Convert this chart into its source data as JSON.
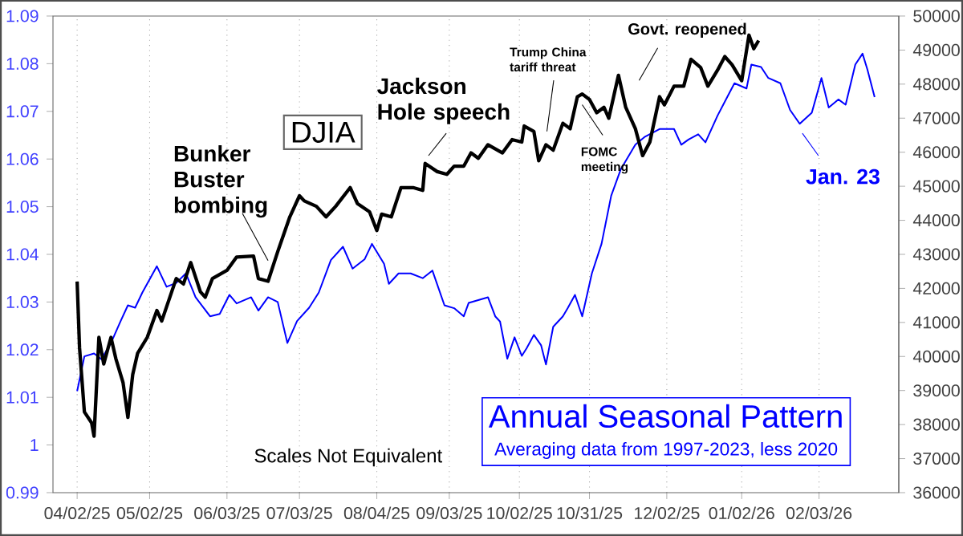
{
  "chart_data": {
    "type": "line",
    "xlim": [
      "2025-03-23",
      "2026-03-08"
    ],
    "xticks": [
      {
        "value": "2025-04-02",
        "label": "04/02/25"
      },
      {
        "value": "2025-05-02",
        "label": "05/02/25"
      },
      {
        "value": "2025-06-03",
        "label": "06/03/25"
      },
      {
        "value": "2025-07-03",
        "label": "07/03/25"
      },
      {
        "value": "2025-08-04",
        "label": "08/04/25"
      },
      {
        "value": "2025-09-03",
        "label": "09/03/25"
      },
      {
        "value": "2025-10-02",
        "label": "10/02/25"
      },
      {
        "value": "2025-10-31",
        "label": "10/31/25"
      },
      {
        "value": "2025-12-02",
        "label": "12/02/25"
      },
      {
        "value": "2026-01-02",
        "label": "01/02/26"
      },
      {
        "value": "2026-02-03",
        "label": "02/03/26"
      }
    ],
    "ylim": [
      0.99,
      1.09
    ],
    "yticks": [
      0.99,
      1,
      1.01,
      1.02,
      1.03,
      1.04,
      1.05,
      1.06,
      1.07,
      1.08,
      1.09
    ],
    "y2lim": [
      36000,
      50000
    ],
    "y2ticks": [
      36000,
      37000,
      38000,
      39000,
      40000,
      41000,
      42000,
      43000,
      44000,
      45000,
      46000,
      47000,
      48000,
      49000,
      50000
    ],
    "grid": "x",
    "series": [
      {
        "name": "DJIA",
        "color": "#000000",
        "axis": "y2",
        "x": [
          "2025-04-02",
          "2025-04-03",
          "2025-04-05",
          "2025-04-08",
          "2025-04-09",
          "2025-04-11",
          "2025-04-13",
          "2025-04-16",
          "2025-04-18",
          "2025-04-21",
          "2025-04-23",
          "2025-04-25",
          "2025-04-27",
          "2025-05-01",
          "2025-05-05",
          "2025-05-07",
          "2025-05-13",
          "2025-05-16",
          "2025-05-19",
          "2025-05-23",
          "2025-05-25",
          "2025-05-28",
          "2025-06-03",
          "2025-06-07",
          "2025-06-14",
          "2025-06-16",
          "2025-06-20",
          "2025-06-24",
          "2025-06-29",
          "2025-07-03",
          "2025-07-05",
          "2025-07-10",
          "2025-07-14",
          "2025-07-18",
          "2025-07-24",
          "2025-07-27",
          "2025-08-01",
          "2025-08-04",
          "2025-08-06",
          "2025-08-10",
          "2025-08-14",
          "2025-08-19",
          "2025-08-23",
          "2025-08-24",
          "2025-08-29",
          "2025-09-02",
          "2025-09-05",
          "2025-09-09",
          "2025-09-12",
          "2025-09-15",
          "2025-09-19",
          "2025-09-25",
          "2025-09-29",
          "2025-10-03",
          "2025-10-04",
          "2025-10-08",
          "2025-10-10",
          "2025-10-13",
          "2025-10-16",
          "2025-10-20",
          "2025-10-23",
          "2025-10-26",
          "2025-10-28",
          "2025-10-31",
          "2025-11-03",
          "2025-11-06",
          "2025-11-08",
          "2025-11-12",
          "2025-11-15",
          "2025-11-19",
          "2025-11-22",
          "2025-11-25",
          "2025-11-29",
          "2025-12-01",
          "2025-12-05",
          "2025-12-09",
          "2025-12-12",
          "2025-12-16",
          "2025-12-19",
          "2025-12-23",
          "2025-12-26",
          "2025-12-29",
          "2026-01-02",
          "2026-01-05",
          "2026-01-07",
          "2026-01-09"
        ],
        "values": [
          42200,
          40250,
          38370,
          38050,
          37660,
          40560,
          39780,
          40560,
          39940,
          39230,
          38210,
          39470,
          40090,
          40560,
          41350,
          41040,
          42290,
          42130,
          42760,
          41900,
          41740,
          42290,
          42530,
          42920,
          42950,
          42290,
          42210,
          43080,
          44100,
          44720,
          44570,
          44410,
          44100,
          44410,
          44960,
          44490,
          44250,
          43700,
          44180,
          44100,
          44960,
          44960,
          44880,
          45670,
          45430,
          45350,
          45590,
          45590,
          45980,
          45820,
          46220,
          45980,
          46370,
          46300,
          46770,
          46610,
          45750,
          46220,
          46060,
          46850,
          46690,
          47630,
          47710,
          47550,
          47160,
          47320,
          47000,
          48260,
          47320,
          46690,
          45900,
          46300,
          47630,
          47390,
          47940,
          47940,
          48730,
          48490,
          47940,
          48410,
          48810,
          48570,
          48100,
          49440,
          49040,
          49280
        ]
      },
      {
        "name": "Annual Seasonal Pattern",
        "color": "#0000ff",
        "axis": "y",
        "x": [
          "2025-04-02",
          "2025-04-05",
          "2025-04-09",
          "2025-04-12",
          "2025-04-16",
          "2025-04-20",
          "2025-04-23",
          "2025-04-26",
          "2025-04-29",
          "2025-05-05",
          "2025-05-09",
          "2025-05-13",
          "2025-05-17",
          "2025-05-21",
          "2025-05-27",
          "2025-05-31",
          "2025-06-04",
          "2025-06-07",
          "2025-06-13",
          "2025-06-16",
          "2025-06-20",
          "2025-06-24",
          "2025-06-28",
          "2025-07-02",
          "2025-07-07",
          "2025-07-11",
          "2025-07-16",
          "2025-07-21",
          "2025-07-25",
          "2025-07-30",
          "2025-08-02",
          "2025-08-07",
          "2025-08-09",
          "2025-08-13",
          "2025-08-18",
          "2025-08-23",
          "2025-08-27",
          "2025-09-01",
          "2025-09-05",
          "2025-09-09",
          "2025-09-11",
          "2025-09-15",
          "2025-09-19",
          "2025-09-22",
          "2025-09-24",
          "2025-09-27",
          "2025-09-30",
          "2025-10-03",
          "2025-10-05",
          "2025-10-08",
          "2025-10-11",
          "2025-10-13",
          "2025-10-16",
          "2025-10-20",
          "2025-10-22",
          "2025-10-25",
          "2025-10-28",
          "2025-11-01",
          "2025-11-05",
          "2025-11-09",
          "2025-11-13",
          "2025-11-19",
          "2025-11-23",
          "2025-11-29",
          "2025-12-05",
          "2025-12-08",
          "2025-12-11",
          "2025-12-15",
          "2025-12-18",
          "2025-12-23",
          "2025-12-27",
          "2025-12-30",
          "2026-01-04",
          "2026-01-06",
          "2026-01-10",
          "2026-01-13",
          "2026-01-18",
          "2026-01-22",
          "2026-01-26",
          "2026-01-31",
          "2026-02-04",
          "2026-02-07",
          "2026-02-11",
          "2026-02-14",
          "2026-02-18",
          "2026-02-21",
          "2026-02-23",
          "2026-02-26"
        ],
        "values": [
          1.0113,
          1.0186,
          1.0192,
          1.018,
          1.0214,
          1.026,
          1.0293,
          1.0288,
          1.032,
          1.0375,
          1.0332,
          1.034,
          1.036,
          1.031,
          1.027,
          1.0275,
          1.0315,
          1.0297,
          1.031,
          1.0282,
          1.031,
          1.03,
          1.0214,
          1.026,
          1.0288,
          1.032,
          1.0388,
          1.0416,
          1.037,
          1.039,
          1.0422,
          1.038,
          1.0338,
          1.036,
          1.036,
          1.035,
          1.0366,
          1.0293,
          1.0287,
          1.027,
          1.0298,
          1.0304,
          1.031,
          1.027,
          1.0259,
          1.0181,
          1.0226,
          1.0187,
          1.0203,
          1.0231,
          1.0209,
          1.0169,
          1.0248,
          1.027,
          1.0287,
          1.0315,
          1.027,
          1.036,
          1.0422,
          1.0523,
          1.0579,
          1.063,
          1.0647,
          1.0663,
          1.0663,
          1.063,
          1.0641,
          1.0652,
          1.0635,
          1.0691,
          1.073,
          1.0759,
          1.0748,
          1.0798,
          1.0793,
          1.077,
          1.0759,
          1.0703,
          1.0674,
          1.0697,
          1.077,
          1.0708,
          1.0725,
          1.0714,
          1.0798,
          1.0821,
          1.0788,
          1.073
        ]
      }
    ],
    "annotations": [
      {
        "text": "Bunker Buster bombing",
        "x": "2025-06-20",
        "y": 1.0387
      },
      "Jackson Hole speech",
      "Trump China tariff threat",
      {
        "text": "FOMC meeting",
        "x": "2025-10-28",
        "y": 1.0714
      },
      "Govt. reopened",
      "Jan. 23",
      "Scales Not Equivalent",
      "Averaging data from 1997-2023, less 2020"
    ]
  }
}
